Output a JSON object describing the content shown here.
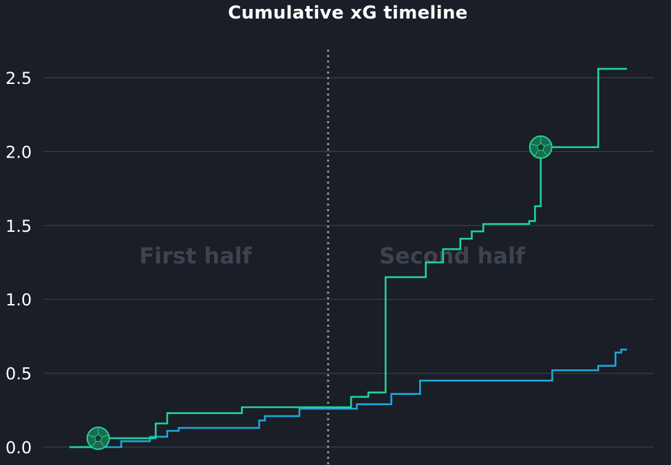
{
  "chart_data": {
    "type": "line",
    "title": "Cumulative xG timeline",
    "xlabel": "",
    "ylabel": "",
    "xlim": [
      0,
      97
    ],
    "ylim": [
      0,
      2.7
    ],
    "y_ticks": [
      "0.0",
      "0.5",
      "1.0",
      "1.5",
      "2.0",
      "2.5"
    ],
    "y_tick_values": [
      0,
      0.5,
      1.0,
      1.5,
      2.0,
      2.5
    ],
    "grid": "horizontal",
    "half_time_marker": 45,
    "annotations": [
      "First half",
      "Second half"
    ],
    "series": [
      {
        "color": "#1fd49a",
        "step": true,
        "x": [
          0,
          5,
          15,
          17,
          30,
          45,
          49,
          52,
          55,
          62,
          65,
          68,
          70,
          72,
          80,
          81,
          82,
          84,
          92,
          97
        ],
        "y": [
          0.0,
          0.06,
          0.16,
          0.23,
          0.27,
          0.27,
          0.34,
          0.37,
          1.15,
          1.25,
          1.34,
          1.41,
          1.46,
          1.51,
          1.53,
          1.63,
          2.03,
          2.03,
          2.56,
          2.56
        ]
      },
      {
        "color": "#1ea8d8",
        "step": true,
        "x": [
          0,
          9,
          14,
          17,
          19,
          33,
          34,
          40,
          50,
          56,
          61,
          72,
          84,
          87,
          92,
          95,
          96,
          97
        ],
        "y": [
          0.0,
          0.04,
          0.07,
          0.11,
          0.13,
          0.18,
          0.21,
          0.26,
          0.29,
          0.36,
          0.45,
          0.45,
          0.52,
          0.52,
          0.55,
          0.64,
          0.66,
          0.66
        ]
      }
    ],
    "goal_markers": [
      {
        "x": 5,
        "y": 0.06,
        "icon": "soccer-ball-icon"
      },
      {
        "x": 82,
        "y": 2.03,
        "icon": "soccer-ball-icon"
      }
    ]
  },
  "colors": {
    "background": "#1a1e26",
    "grid": "#3a404c",
    "divider": "#8a909a",
    "annotation": "#3d4450",
    "goal_fill": "#1d6b4f",
    "goal_stroke": "#1fd49a"
  }
}
